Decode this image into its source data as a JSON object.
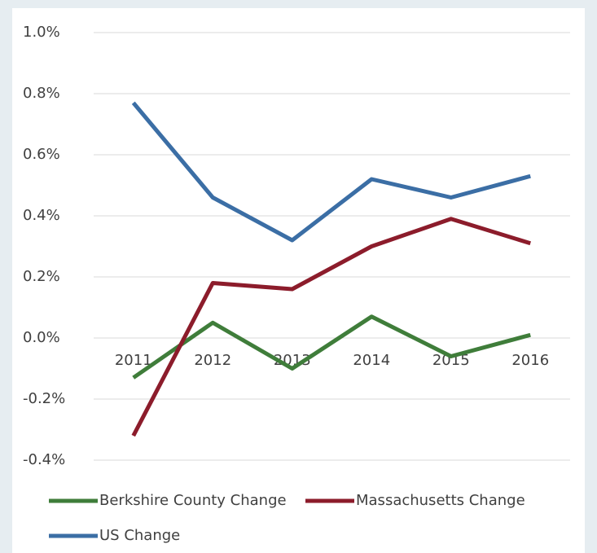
{
  "chart_data": {
    "type": "line",
    "categories": [
      "2011",
      "2012",
      "2013",
      "2014",
      "2015",
      "2016"
    ],
    "series": [
      {
        "name": "Berkshire County Change",
        "color": "#3f7d3a",
        "values": [
          -0.13,
          0.05,
          -0.1,
          0.07,
          -0.06,
          0.01
        ]
      },
      {
        "name": "Massachusetts Change",
        "color": "#8c1c2b",
        "values": [
          -0.32,
          0.18,
          0.16,
          0.3,
          0.39,
          0.31
        ]
      },
      {
        "name": "US Change",
        "color": "#3b6ea5",
        "values": [
          0.77,
          0.46,
          0.32,
          0.52,
          0.46,
          0.53
        ]
      }
    ],
    "ylim": [
      -0.4,
      1.0
    ],
    "yticks": [
      {
        "value": -0.4,
        "label": "-0.4%"
      },
      {
        "value": -0.2,
        "label": "-0.2%"
      },
      {
        "value": 0.0,
        "label": "0.0%"
      },
      {
        "value": 0.2,
        "label": "0.2%"
      },
      {
        "value": 0.4,
        "label": "0.4%"
      },
      {
        "value": 0.6,
        "label": "0.6%"
      },
      {
        "value": 0.8,
        "label": "0.8%"
      },
      {
        "value": 1.0,
        "label": "1.0%"
      }
    ],
    "grid": true,
    "legend": "bottom"
  }
}
